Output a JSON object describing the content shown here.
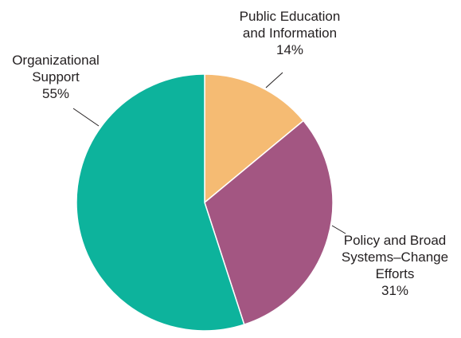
{
  "chart_data": {
    "type": "pie",
    "slices": [
      {
        "name": "Public Education and Information",
        "label_lines": [
          "Public Education",
          "and Information"
        ],
        "value": 14,
        "value_label": "14%",
        "color": "#f5bb73"
      },
      {
        "name": "Policy and Broad Systems–Change Efforts",
        "label_lines": [
          "Policy and Broad",
          "Systems–Change",
          "Efforts"
        ],
        "value": 31,
        "value_label": "31%",
        "color": "#a35682"
      },
      {
        "name": "Organizational Support",
        "label_lines": [
          "Organizational",
          "Support"
        ],
        "value": 55,
        "value_label": "55%",
        "color": "#0db39c"
      }
    ],
    "start_angle": "top, clockwise",
    "legend": "none (direct labels)"
  }
}
